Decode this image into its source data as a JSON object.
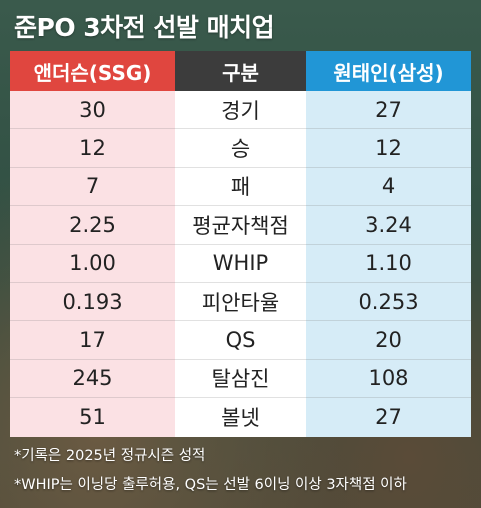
{
  "title": "준PO 3차전 선발 매치업",
  "header": {
    "left": "앤더슨(SSG)",
    "middle": "구분",
    "right": "원태인(삼성)"
  },
  "rows": [
    {
      "left": "30",
      "label": "경기",
      "right": "27"
    },
    {
      "left": "12",
      "label": "승",
      "right": "12"
    },
    {
      "left": "7",
      "label": "패",
      "right": "4"
    },
    {
      "left": "2.25",
      "label": "평균자책점",
      "right": "3.24"
    },
    {
      "left": "1.00",
      "label": "WHIP",
      "right": "1.10"
    },
    {
      "left": "0.193",
      "label": "피안타율",
      "right": "0.253"
    },
    {
      "left": "17",
      "label": "QS",
      "right": "20"
    },
    {
      "left": "245",
      "label": "탈삼진",
      "right": "108"
    },
    {
      "left": "51",
      "label": "볼넷",
      "right": "27"
    }
  ],
  "notes": [
    "*기록은 2025년 정규시즌 성적",
    "*WHIP는 이닝당 출루허용, QS는 선발 6이닝 이상 3자책점 이하"
  ],
  "colors": {
    "left_header": "#e0463f",
    "middle_header": "#3c3c3c",
    "right_header": "#2196d6",
    "left_cells": "#fbe1e4",
    "right_cells": "#d6ecf7"
  }
}
